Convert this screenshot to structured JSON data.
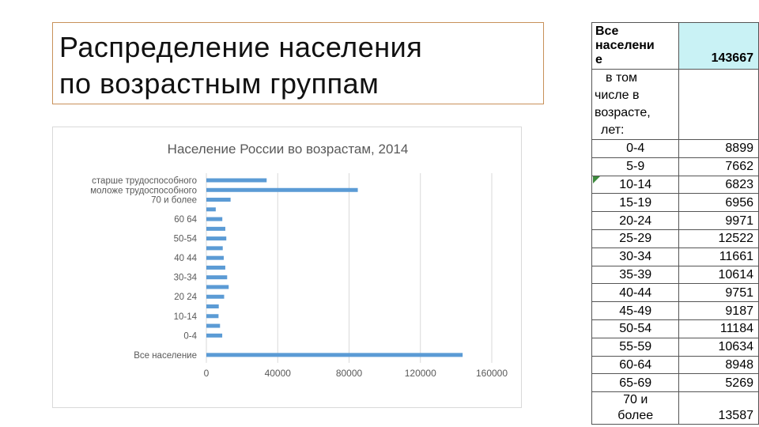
{
  "slide": {
    "title_line1": "Распределение населения",
    "title_line2": "по возрастным группам"
  },
  "chart_data": {
    "type": "bar",
    "orientation": "horizontal",
    "title": "Население России во возрастам, 2014",
    "categories": [
      "старше трудоспособного",
      "моложе трудоспособного",
      "70 и более",
      "65-69",
      "60 64",
      "55-59",
      "50-54",
      "45-49",
      "40 44",
      "35-39",
      "30-34",
      "25-29",
      "20 24",
      "15-19",
      "10-14",
      "5-9",
      "0-4",
      "",
      "Все население"
    ],
    "tick_labels_shown": [
      "старше трудоспособного",
      "моложе трудоспособного",
      "70 и более",
      "60 64",
      "50-54",
      "40 44",
      "30-34",
      "20 24",
      "10-14",
      "0-4",
      "Все население"
    ],
    "values": [
      33800,
      84900,
      13587,
      5269,
      8948,
      10634,
      11184,
      9187,
      9751,
      10614,
      11661,
      12522,
      9971,
      6956,
      6823,
      7662,
      8899,
      0,
      143667
    ],
    "xlim": [
      0,
      160000
    ],
    "x_ticks": [
      "0",
      "40000",
      "80000",
      "120000",
      "160000"
    ],
    "grid": "vertical",
    "legend": "none",
    "bar_color": "#5b9bd5"
  },
  "table": {
    "header_label": "Все населени е",
    "header_label_lines": [
      "Все",
      "населени",
      "е"
    ],
    "header_value": "143667",
    "sub_label_lines": [
      "в том",
      "числе в",
      "возрасте,",
      "лет:"
    ],
    "rows": [
      {
        "age": "0-4",
        "value": "8899"
      },
      {
        "age": "5-9",
        "value": "7662"
      },
      {
        "age": "10-14",
        "value": "6823"
      },
      {
        "age": "15-19",
        "value": "6956"
      },
      {
        "age": "20-24",
        "value": "9971"
      },
      {
        "age": "25-29",
        "value": "12522"
      },
      {
        "age": "30-34",
        "value": "11661"
      },
      {
        "age": "35-39",
        "value": "10614"
      },
      {
        "age": "40-44",
        "value": "9751"
      },
      {
        "age": "45-49",
        "value": "9187"
      },
      {
        "age": "50-54",
        "value": "11184"
      },
      {
        "age": "55-59",
        "value": "10634"
      },
      {
        "age": "60-64",
        "value": "8948"
      },
      {
        "age": "65-69",
        "value": "5269"
      }
    ],
    "last_row": {
      "age_lines": [
        "70 и",
        "более"
      ],
      "value": "13587"
    }
  }
}
